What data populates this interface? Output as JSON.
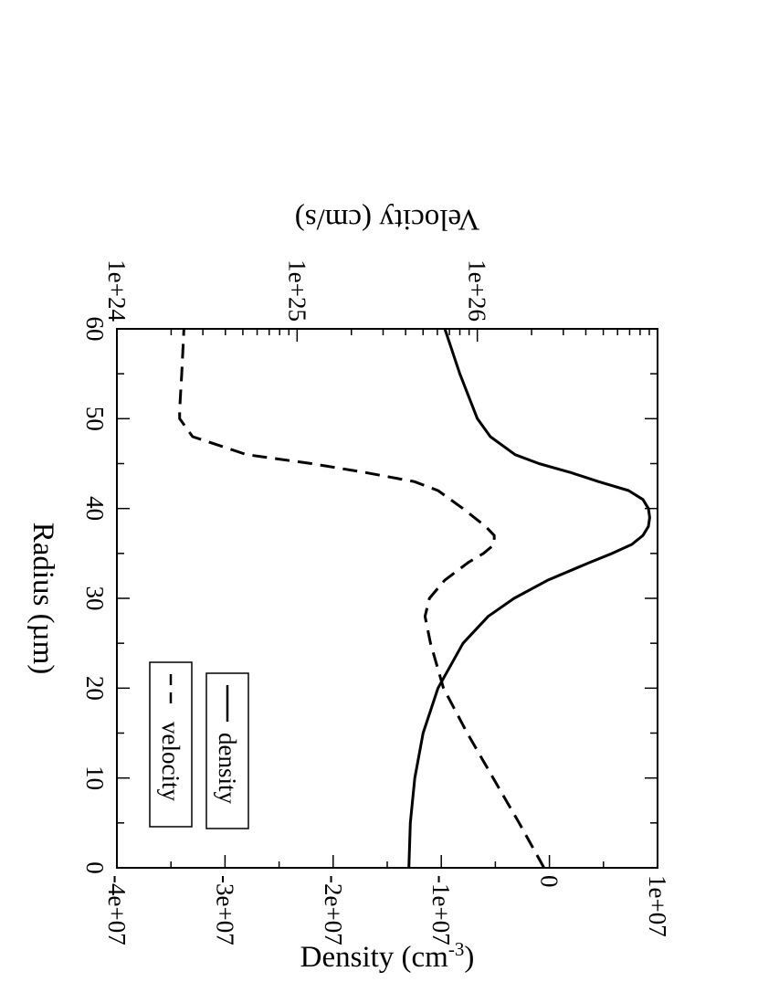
{
  "chart_data": {
    "type": "line",
    "orientation": "rotated-90-clockwise",
    "title": "",
    "xlabel": "Radius (µm)",
    "xlim": [
      0,
      60
    ],
    "x_ticks": [
      "0",
      "10",
      "20",
      "30",
      "40",
      "50",
      "60"
    ],
    "y_left": {
      "label": "Density (cm",
      "label_sup": "-3",
      "label_suffix": ")",
      "scale": "log",
      "ylim": [
        1e+24,
        1e+27
      ],
      "ticks": [
        "1e+24",
        "1e+25",
        "1e+26"
      ]
    },
    "y_right": {
      "label": "Velocity (cm/s)",
      "scale": "linear",
      "ylim": [
        -40000000,
        10000000
      ],
      "ticks": [
        "1e+07",
        "0",
        "-1e+07",
        "-2e+07",
        "-3e+07",
        "-4e+07"
      ]
    },
    "grid": false,
    "legend_placement": "top-left",
    "series": [
      {
        "name": "velocity",
        "axis": "right",
        "style": "dashed",
        "color": "#000000",
        "x": [
          0,
          5,
          10,
          15,
          20,
          25,
          28,
          30,
          32,
          34,
          35,
          36,
          37,
          38,
          40,
          42,
          43,
          44,
          45,
          46,
          48,
          50,
          51,
          55,
          60
        ],
        "y": [
          -500000,
          -2800000,
          -5200000,
          -7600000,
          -9800000,
          -11000000,
          -11500000,
          -11100000,
          -9700000,
          -7500000,
          -6100000,
          -5100000,
          -5100000,
          -5900000,
          -8000000,
          -10300000,
          -12500000,
          -17000000,
          -22000000,
          -28000000,
          -33000000,
          -34200000,
          -34200000,
          -34000000,
          -33800000
        ]
      },
      {
        "name": "density",
        "axis": "left",
        "style": "solid",
        "color": "#000000",
        "x": [
          0,
          5,
          10,
          15,
          20,
          25,
          28,
          30,
          32,
          34,
          35,
          36,
          37,
          38,
          39,
          40,
          41,
          42,
          43,
          44,
          45,
          46,
          48,
          50,
          55,
          60
        ],
        "y": [
          4.17e+25,
          4.25e+25,
          4.5e+25,
          5e+25,
          6.05e+25,
          8.33e+25,
          1.15e+26,
          1.6e+26,
          2.45e+26,
          4.2e+26,
          5.6e+26,
          7.2e+26,
          8.3e+26,
          8.9e+26,
          9.05e+26,
          8.9e+26,
          8.3e+26,
          6.9e+26,
          4.7e+26,
          3.3e+26,
          2.2e+26,
          1.62e+26,
          1.18e+26,
          1e+26,
          8e+25,
          6.6e+25
        ]
      }
    ]
  }
}
